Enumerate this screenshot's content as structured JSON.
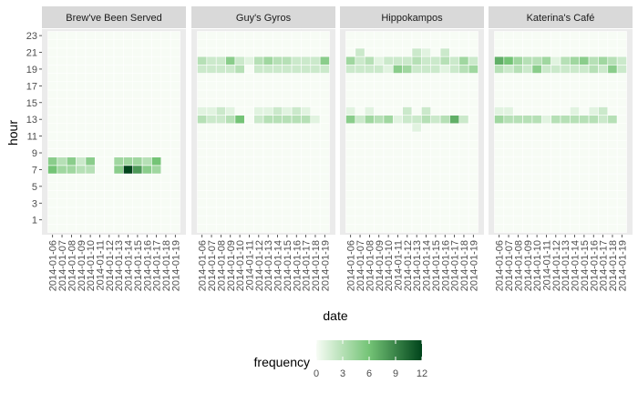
{
  "chart_data": {
    "type": "heatmap",
    "xlabel": "date",
    "ylabel": "hour",
    "dates": [
      "2014-01-06",
      "2014-01-07",
      "2014-01-08",
      "2014-01-09",
      "2014-01-10",
      "2014-01-11",
      "2014-01-12",
      "2014-01-13",
      "2014-01-14",
      "2014-01-15",
      "2014-01-16",
      "2014-01-17",
      "2014-01-18",
      "2014-01-19"
    ],
    "y_ticks": [
      1,
      3,
      5,
      7,
      9,
      11,
      13,
      15,
      17,
      19,
      21,
      23
    ],
    "hour_range": [
      0,
      23
    ],
    "panels": [
      {
        "name": "Brew've Been Served",
        "cells": [
          {
            "date": "2014-01-06",
            "hour": 7,
            "value": 6
          },
          {
            "date": "2014-01-06",
            "hour": 8,
            "value": 5
          },
          {
            "date": "2014-01-07",
            "hour": 7,
            "value": 4
          },
          {
            "date": "2014-01-07",
            "hour": 8,
            "value": 3
          },
          {
            "date": "2014-01-08",
            "hour": 7,
            "value": 4
          },
          {
            "date": "2014-01-08",
            "hour": 8,
            "value": 5
          },
          {
            "date": "2014-01-09",
            "hour": 7,
            "value": 3
          },
          {
            "date": "2014-01-09",
            "hour": 8,
            "value": 2
          },
          {
            "date": "2014-01-10",
            "hour": 7,
            "value": 3
          },
          {
            "date": "2014-01-10",
            "hour": 8,
            "value": 5
          },
          {
            "date": "2014-01-13",
            "hour": 7,
            "value": 5
          },
          {
            "date": "2014-01-13",
            "hour": 8,
            "value": 4
          },
          {
            "date": "2014-01-14",
            "hour": 7,
            "value": 12
          },
          {
            "date": "2014-01-14",
            "hour": 8,
            "value": 4
          },
          {
            "date": "2014-01-15",
            "hour": 7,
            "value": 8
          },
          {
            "date": "2014-01-15",
            "hour": 8,
            "value": 4
          },
          {
            "date": "2014-01-16",
            "hour": 7,
            "value": 5
          },
          {
            "date": "2014-01-16",
            "hour": 8,
            "value": 3
          },
          {
            "date": "2014-01-17",
            "hour": 7,
            "value": 4
          },
          {
            "date": "2014-01-17",
            "hour": 8,
            "value": 6
          }
        ]
      },
      {
        "name": "Guy's Gyros",
        "cells": [
          {
            "date": "2014-01-06",
            "hour": 20,
            "value": 3
          },
          {
            "date": "2014-01-06",
            "hour": 19,
            "value": 2
          },
          {
            "date": "2014-01-06",
            "hour": 13,
            "value": 3
          },
          {
            "date": "2014-01-06",
            "hour": 14,
            "value": 1
          },
          {
            "date": "2014-01-07",
            "hour": 20,
            "value": 2
          },
          {
            "date": "2014-01-07",
            "hour": 19,
            "value": 2
          },
          {
            "date": "2014-01-07",
            "hour": 13,
            "value": 2
          },
          {
            "date": "2014-01-07",
            "hour": 14,
            "value": 1
          },
          {
            "date": "2014-01-08",
            "hour": 20,
            "value": 2
          },
          {
            "date": "2014-01-08",
            "hour": 19,
            "value": 2
          },
          {
            "date": "2014-01-08",
            "hour": 13,
            "value": 2
          },
          {
            "date": "2014-01-08",
            "hour": 14,
            "value": 2
          },
          {
            "date": "2014-01-09",
            "hour": 20,
            "value": 5
          },
          {
            "date": "2014-01-09",
            "hour": 19,
            "value": 2
          },
          {
            "date": "2014-01-09",
            "hour": 13,
            "value": 3
          },
          {
            "date": "2014-01-09",
            "hour": 14,
            "value": 1
          },
          {
            "date": "2014-01-10",
            "hour": 20,
            "value": 2
          },
          {
            "date": "2014-01-10",
            "hour": 19,
            "value": 3
          },
          {
            "date": "2014-01-10",
            "hour": 13,
            "value": 6
          },
          {
            "date": "2014-01-11",
            "hour": 20,
            "value": 1
          },
          {
            "date": "2014-01-12",
            "hour": 20,
            "value": 3
          },
          {
            "date": "2014-01-12",
            "hour": 19,
            "value": 2
          },
          {
            "date": "2014-01-12",
            "hour": 13,
            "value": 2
          },
          {
            "date": "2014-01-12",
            "hour": 14,
            "value": 1
          },
          {
            "date": "2014-01-13",
            "hour": 20,
            "value": 4
          },
          {
            "date": "2014-01-13",
            "hour": 19,
            "value": 2
          },
          {
            "date": "2014-01-13",
            "hour": 13,
            "value": 3
          },
          {
            "date": "2014-01-13",
            "hour": 14,
            "value": 1
          },
          {
            "date": "2014-01-14",
            "hour": 20,
            "value": 3
          },
          {
            "date": "2014-01-14",
            "hour": 19,
            "value": 2
          },
          {
            "date": "2014-01-14",
            "hour": 13,
            "value": 3
          },
          {
            "date": "2014-01-14",
            "hour": 14,
            "value": 2
          },
          {
            "date": "2014-01-15",
            "hour": 20,
            "value": 3
          },
          {
            "date": "2014-01-15",
            "hour": 19,
            "value": 2
          },
          {
            "date": "2014-01-15",
            "hour": 13,
            "value": 3
          },
          {
            "date": "2014-01-15",
            "hour": 14,
            "value": 1
          },
          {
            "date": "2014-01-16",
            "hour": 20,
            "value": 2
          },
          {
            "date": "2014-01-16",
            "hour": 19,
            "value": 2
          },
          {
            "date": "2014-01-16",
            "hour": 13,
            "value": 3
          },
          {
            "date": "2014-01-16",
            "hour": 14,
            "value": 2
          },
          {
            "date": "2014-01-17",
            "hour": 20,
            "value": 2
          },
          {
            "date": "2014-01-17",
            "hour": 19,
            "value": 2
          },
          {
            "date": "2014-01-17",
            "hour": 13,
            "value": 3
          },
          {
            "date": "2014-01-17",
            "hour": 14,
            "value": 1
          },
          {
            "date": "2014-01-18",
            "hour": 20,
            "value": 2
          },
          {
            "date": "2014-01-18",
            "hour": 19,
            "value": 2
          },
          {
            "date": "2014-01-18",
            "hour": 13,
            "value": 1
          },
          {
            "date": "2014-01-19",
            "hour": 20,
            "value": 5
          },
          {
            "date": "2014-01-19",
            "hour": 19,
            "value": 2
          }
        ]
      },
      {
        "name": "Hippokampos",
        "cells": [
          {
            "date": "2014-01-06",
            "hour": 20,
            "value": 4
          },
          {
            "date": "2014-01-06",
            "hour": 19,
            "value": 2
          },
          {
            "date": "2014-01-06",
            "hour": 13,
            "value": 5
          },
          {
            "date": "2014-01-06",
            "hour": 14,
            "value": 1
          },
          {
            "date": "2014-01-07",
            "hour": 21,
            "value": 2
          },
          {
            "date": "2014-01-07",
            "hour": 20,
            "value": 2
          },
          {
            "date": "2014-01-07",
            "hour": 19,
            "value": 2
          },
          {
            "date": "2014-01-07",
            "hour": 13,
            "value": 2
          },
          {
            "date": "2014-01-08",
            "hour": 20,
            "value": 3
          },
          {
            "date": "2014-01-08",
            "hour": 19,
            "value": 2
          },
          {
            "date": "2014-01-08",
            "hour": 13,
            "value": 4
          },
          {
            "date": "2014-01-08",
            "hour": 14,
            "value": 1
          },
          {
            "date": "2014-01-09",
            "hour": 20,
            "value": 1
          },
          {
            "date": "2014-01-09",
            "hour": 19,
            "value": 2
          },
          {
            "date": "2014-01-09",
            "hour": 13,
            "value": 3
          },
          {
            "date": "2014-01-10",
            "hour": 20,
            "value": 2
          },
          {
            "date": "2014-01-10",
            "hour": 19,
            "value": 1
          },
          {
            "date": "2014-01-10",
            "hour": 13,
            "value": 4
          },
          {
            "date": "2014-01-11",
            "hour": 20,
            "value": 2
          },
          {
            "date": "2014-01-11",
            "hour": 19,
            "value": 5
          },
          {
            "date": "2014-01-11",
            "hour": 13,
            "value": 1
          },
          {
            "date": "2014-01-12",
            "hour": 20,
            "value": 2
          },
          {
            "date": "2014-01-12",
            "hour": 19,
            "value": 4
          },
          {
            "date": "2014-01-12",
            "hour": 13,
            "value": 2
          },
          {
            "date": "2014-01-12",
            "hour": 14,
            "value": 2
          },
          {
            "date": "2014-01-13",
            "hour": 21,
            "value": 2
          },
          {
            "date": "2014-01-13",
            "hour": 20,
            "value": 3
          },
          {
            "date": "2014-01-13",
            "hour": 19,
            "value": 2
          },
          {
            "date": "2014-01-13",
            "hour": 13,
            "value": 2
          },
          {
            "date": "2014-01-13",
            "hour": 12,
            "value": 1
          },
          {
            "date": "2014-01-14",
            "hour": 21,
            "value": 1
          },
          {
            "date": "2014-01-14",
            "hour": 20,
            "value": 2
          },
          {
            "date": "2014-01-14",
            "hour": 19,
            "value": 2
          },
          {
            "date": "2014-01-14",
            "hour": 13,
            "value": 3
          },
          {
            "date": "2014-01-14",
            "hour": 14,
            "value": 2
          },
          {
            "date": "2014-01-15",
            "hour": 20,
            "value": 2
          },
          {
            "date": "2014-01-15",
            "hour": 19,
            "value": 2
          },
          {
            "date": "2014-01-15",
            "hour": 13,
            "value": 2
          },
          {
            "date": "2014-01-16",
            "hour": 21,
            "value": 2
          },
          {
            "date": "2014-01-16",
            "hour": 20,
            "value": 3
          },
          {
            "date": "2014-01-16",
            "hour": 19,
            "value": 1
          },
          {
            "date": "2014-01-16",
            "hour": 13,
            "value": 3
          },
          {
            "date": "2014-01-17",
            "hour": 20,
            "value": 2
          },
          {
            "date": "2014-01-17",
            "hour": 19,
            "value": 2
          },
          {
            "date": "2014-01-17",
            "hour": 13,
            "value": 7
          },
          {
            "date": "2014-01-18",
            "hour": 20,
            "value": 4
          },
          {
            "date": "2014-01-18",
            "hour": 19,
            "value": 3
          },
          {
            "date": "2014-01-18",
            "hour": 13,
            "value": 2
          },
          {
            "date": "2014-01-19",
            "hour": 20,
            "value": 2
          },
          {
            "date": "2014-01-19",
            "hour": 19,
            "value": 4
          }
        ]
      },
      {
        "name": "Katerina's Café",
        "cells": [
          {
            "date": "2014-01-06",
            "hour": 20,
            "value": 7
          },
          {
            "date": "2014-01-06",
            "hour": 19,
            "value": 3
          },
          {
            "date": "2014-01-06",
            "hour": 13,
            "value": 4
          },
          {
            "date": "2014-01-06",
            "hour": 14,
            "value": 1
          },
          {
            "date": "2014-01-07",
            "hour": 20,
            "value": 6
          },
          {
            "date": "2014-01-07",
            "hour": 19,
            "value": 2
          },
          {
            "date": "2014-01-07",
            "hour": 13,
            "value": 3
          },
          {
            "date": "2014-01-07",
            "hour": 14,
            "value": 1
          },
          {
            "date": "2014-01-08",
            "hour": 20,
            "value": 4
          },
          {
            "date": "2014-01-08",
            "hour": 19,
            "value": 3
          },
          {
            "date": "2014-01-08",
            "hour": 13,
            "value": 3
          },
          {
            "date": "2014-01-09",
            "hour": 20,
            "value": 3
          },
          {
            "date": "2014-01-09",
            "hour": 19,
            "value": 2
          },
          {
            "date": "2014-01-09",
            "hour": 13,
            "value": 3
          },
          {
            "date": "2014-01-10",
            "hour": 20,
            "value": 3
          },
          {
            "date": "2014-01-10",
            "hour": 19,
            "value": 5
          },
          {
            "date": "2014-01-10",
            "hour": 13,
            "value": 3
          },
          {
            "date": "2014-01-11",
            "hour": 20,
            "value": 4
          },
          {
            "date": "2014-01-11",
            "hour": 19,
            "value": 2
          },
          {
            "date": "2014-01-11",
            "hour": 13,
            "value": 1
          },
          {
            "date": "2014-01-12",
            "hour": 20,
            "value": 1
          },
          {
            "date": "2014-01-12",
            "hour": 19,
            "value": 2
          },
          {
            "date": "2014-01-12",
            "hour": 13,
            "value": 3
          },
          {
            "date": "2014-01-13",
            "hour": 20,
            "value": 3
          },
          {
            "date": "2014-01-13",
            "hour": 19,
            "value": 2
          },
          {
            "date": "2014-01-13",
            "hour": 13,
            "value": 3
          },
          {
            "date": "2014-01-14",
            "hour": 20,
            "value": 4
          },
          {
            "date": "2014-01-14",
            "hour": 19,
            "value": 2
          },
          {
            "date": "2014-01-14",
            "hour": 13,
            "value": 3
          },
          {
            "date": "2014-01-14",
            "hour": 14,
            "value": 1
          },
          {
            "date": "2014-01-15",
            "hour": 20,
            "value": 5
          },
          {
            "date": "2014-01-15",
            "hour": 19,
            "value": 2
          },
          {
            "date": "2014-01-15",
            "hour": 13,
            "value": 3
          },
          {
            "date": "2014-01-16",
            "hour": 20,
            "value": 3
          },
          {
            "date": "2014-01-16",
            "hour": 19,
            "value": 3
          },
          {
            "date": "2014-01-16",
            "hour": 13,
            "value": 3
          },
          {
            "date": "2014-01-16",
            "hour": 14,
            "value": 1
          },
          {
            "date": "2014-01-17",
            "hour": 20,
            "value": 4
          },
          {
            "date": "2014-01-17",
            "hour": 19,
            "value": 2
          },
          {
            "date": "2014-01-17",
            "hour": 13,
            "value": 2
          },
          {
            "date": "2014-01-17",
            "hour": 14,
            "value": 2
          },
          {
            "date": "2014-01-18",
            "hour": 20,
            "value": 3
          },
          {
            "date": "2014-01-18",
            "hour": 19,
            "value": 5
          },
          {
            "date": "2014-01-18",
            "hour": 13,
            "value": 3
          },
          {
            "date": "2014-01-19",
            "hour": 20,
            "value": 2
          },
          {
            "date": "2014-01-19",
            "hour": 19,
            "value": 2
          }
        ]
      }
    ],
    "legend": {
      "title": "frequency",
      "breaks": [
        0,
        3,
        6,
        9,
        12
      ],
      "range": [
        0,
        12
      ],
      "position": "bottom"
    },
    "colors": {
      "low": "#f7fcf5",
      "high": "#00441b",
      "panel_background": "#ebebeb",
      "strip_background": "#d9d9d9",
      "grid": "#ffffff"
    }
  }
}
